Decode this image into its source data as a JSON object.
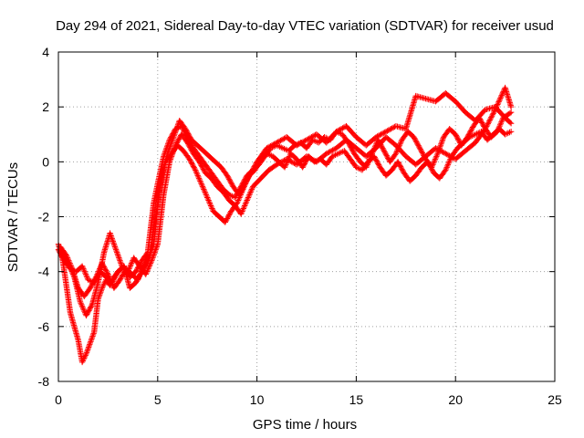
{
  "chart_data": {
    "type": "scatter",
    "title": "Day 294 of 2021, Sidereal Day-to-day VTEC variation (SDTVAR) for receiver usud",
    "xlabel": "GPS time / hours",
    "ylabel": "SDTVAR / TECUs",
    "xlim": [
      0,
      25
    ],
    "ylim": [
      -8,
      4
    ],
    "xticks": [
      0,
      5,
      10,
      15,
      20,
      25
    ],
    "yticks": [
      -8,
      -6,
      -4,
      -2,
      0,
      2,
      4
    ],
    "grid": true,
    "marker": "+",
    "series": [
      {
        "name": "SDTVAR",
        "color": "#ff0000",
        "tracks": [
          {
            "x": [
              0.0,
              0.3,
              0.6,
              0.9,
              1.2,
              1.5,
              1.8,
              2.1,
              2.4,
              2.7,
              3.0,
              3.3,
              3.6,
              3.9,
              4.2,
              4.5,
              4.8,
              5.0,
              5.3,
              5.6,
              5.9,
              6.2,
              6.5,
              6.8,
              7.1,
              7.4,
              7.7,
              8.0,
              8.3,
              8.6,
              8.9,
              9.2,
              9.5,
              9.8,
              10.1,
              10.4,
              10.7,
              11.0,
              11.3,
              11.6,
              11.9,
              12.2,
              12.5,
              12.8,
              13.1,
              13.4,
              13.7,
              14.0,
              14.3,
              14.6,
              14.9,
              15.2,
              15.5,
              15.8,
              16.1,
              16.4,
              16.7,
              17.0,
              17.3,
              17.6,
              17.9,
              18.2,
              18.5,
              18.8,
              19.1,
              19.4,
              19.7,
              20.0,
              20.3,
              20.6,
              20.9,
              21.2,
              21.5,
              21.8,
              22.1,
              22.4,
              22.8
            ],
            "y": [
              -3.2,
              -3.6,
              -3.9,
              -4.0,
              -3.8,
              -4.3,
              -4.4,
              -4.0,
              -4.2,
              -4.4,
              -4.0,
              -3.8,
              -4.2,
              -4.0,
              -3.6,
              -3.3,
              -1.5,
              -0.8,
              0.2,
              0.8,
              1.2,
              1.3,
              0.9,
              0.5,
              0.2,
              -0.1,
              -0.4,
              -0.7,
              -1.0,
              -1.2,
              -1.3,
              -0.9,
              -0.5,
              -0.3,
              -0.1,
              0.2,
              0.5,
              0.6,
              0.5,
              0.4,
              0.6,
              0.7,
              0.5,
              0.8,
              0.7,
              0.9,
              0.8,
              1.1,
              1.0,
              0.7,
              0.3,
              0.0,
              -0.2,
              0.3,
              0.8,
              0.4,
              0.0,
              0.3,
              0.8,
              1.1,
              0.9,
              0.5,
              0.1,
              -0.2,
              0.3,
              0.9,
              1.2,
              1.0,
              0.6,
              0.9,
              1.3,
              1.6,
              1.2,
              0.9,
              1.1,
              1.6,
              1.8
            ]
          },
          {
            "x": [
              0.0,
              0.2,
              0.4,
              0.6,
              0.8,
              1.0,
              1.2,
              1.4,
              1.6,
              1.8,
              2.0,
              2.2,
              2.4,
              2.6,
              2.8,
              3.0,
              3.3,
              3.6,
              3.9,
              4.2,
              4.5,
              4.8,
              5.1,
              5.4,
              5.7,
              6.0,
              6.3,
              6.6,
              6.9,
              7.2,
              7.5,
              7.8,
              8.1,
              8.4,
              8.7,
              9.0,
              9.3,
              9.6,
              9.9,
              10.2,
              10.5,
              10.8,
              11.1,
              11.4,
              11.7,
              12.0,
              12.3,
              12.6,
              12.9,
              13.2,
              13.5,
              13.8,
              14.1,
              14.4,
              14.7,
              15.0,
              15.3,
              15.6,
              15.9,
              16.2,
              16.5,
              16.8,
              17.1,
              17.4,
              17.7,
              18.0,
              18.3,
              18.6,
              18.9,
              19.2,
              19.5,
              19.8,
              20.1,
              20.4,
              20.7,
              21.0,
              21.3,
              21.6,
              21.9,
              22.2,
              22.5,
              22.8
            ],
            "y": [
              -3.0,
              -3.5,
              -4.5,
              -5.5,
              -6.0,
              -6.5,
              -7.3,
              -7.0,
              -6.6,
              -6.2,
              -5.0,
              -4.6,
              -4.3,
              -4.5,
              -4.2,
              -4.0,
              -3.8,
              -4.6,
              -4.4,
              -4.0,
              -3.6,
              -3.0,
              -1.0,
              0.0,
              0.3,
              0.6,
              0.4,
              0.1,
              -0.3,
              -0.8,
              -1.3,
              -1.8,
              -2.0,
              -2.2,
              -1.8,
              -1.5,
              -1.0,
              -0.5,
              -0.3,
              0.1,
              0.3,
              0.2,
              0.0,
              -0.2,
              0.3,
              0.1,
              -0.2,
              0.2,
              0.0,
              0.1,
              -0.1,
              0.2,
              0.3,
              0.4,
              0.1,
              -0.2,
              -0.3,
              0.0,
              0.2,
              -0.2,
              -0.5,
              -0.3,
              0.0,
              -0.4,
              -0.7,
              -0.5,
              -0.2,
              0.0,
              -0.4,
              -0.6,
              -0.3,
              0.2,
              0.5,
              0.7,
              0.9,
              1.0,
              1.1,
              0.8,
              1.0,
              1.2,
              1.0,
              1.1
            ]
          },
          {
            "x": [
              0.1,
              0.4,
              0.7,
              1.0,
              1.3,
              1.6,
              1.9,
              2.2,
              2.5,
              2.8,
              3.1,
              3.4,
              3.7,
              4.0,
              4.3,
              4.6,
              4.9,
              5.2,
              5.5,
              5.8,
              6.1,
              6.4,
              6.7,
              7.0,
              7.3,
              7.6,
              7.9,
              8.2,
              8.5,
              8.8,
              9.1,
              9.4,
              9.7,
              10.0,
              10.5,
              11.0,
              11.5,
              12.0,
              12.5,
              13.0,
              13.5,
              14.0,
              14.5,
              15.0,
              15.5,
              16.0,
              16.5,
              17.0,
              17.5,
              18.0,
              18.5,
              19.0,
              19.5,
              20.0,
              20.5,
              21.0,
              21.5,
              22.0,
              22.5,
              22.8
            ],
            "y": [
              -3.1,
              -3.4,
              -3.9,
              -4.6,
              -4.9,
              -4.6,
              -4.2,
              -3.7,
              -4.1,
              -4.6,
              -4.3,
              -3.9,
              -4.1,
              -4.3,
              -3.8,
              -3.4,
              -2.0,
              -0.5,
              0.3,
              0.9,
              1.5,
              1.2,
              0.8,
              0.6,
              0.4,
              0.2,
              0.0,
              -0.2,
              -0.5,
              -0.9,
              -1.2,
              -0.8,
              -0.4,
              0.0,
              0.5,
              0.7,
              0.9,
              0.6,
              0.8,
              1.0,
              0.7,
              1.1,
              1.3,
              0.9,
              0.6,
              0.9,
              1.1,
              1.3,
              1.2,
              2.4,
              2.3,
              2.2,
              2.5,
              2.2,
              1.8,
              1.5,
              1.9,
              2.0,
              1.6,
              1.4
            ]
          },
          {
            "x": [
              0.2,
              0.5,
              0.8,
              1.1,
              1.4,
              1.7,
              2.0,
              2.3,
              2.6,
              2.9,
              3.2,
              3.5,
              3.8,
              4.1,
              4.4,
              4.7,
              5.0,
              5.3,
              5.6,
              5.9,
              6.2,
              6.5,
              6.8,
              7.1,
              7.4,
              7.7,
              8.0,
              8.3,
              8.6,
              8.9,
              9.2,
              9.5,
              9.8,
              10.2,
              10.6,
              11.0,
              11.5,
              12.0,
              12.5,
              13.0,
              13.5,
              14.0,
              14.5,
              15.0,
              15.5,
              16.0,
              16.5,
              17.0,
              17.5,
              18.0,
              18.5,
              19.0,
              19.5,
              20.0,
              20.5,
              21.0,
              21.5,
              22.0,
              22.5,
              22.8
            ],
            "y": [
              -3.3,
              -3.7,
              -4.2,
              -5.1,
              -5.6,
              -5.2,
              -4.4,
              -3.3,
              -2.6,
              -3.2,
              -3.8,
              -4.0,
              -3.5,
              -3.8,
              -4.1,
              -3.6,
              -3.0,
              -1.2,
              0.0,
              0.6,
              1.0,
              0.7,
              0.3,
              0.0,
              -0.4,
              -0.6,
              -0.9,
              -1.1,
              -1.4,
              -1.6,
              -1.9,
              -1.4,
              -0.9,
              -0.6,
              -0.3,
              -0.1,
              0.1,
              -0.1,
              0.2,
              0.0,
              0.3,
              0.5,
              0.8,
              0.5,
              0.2,
              0.5,
              0.9,
              0.6,
              0.2,
              -0.1,
              0.2,
              0.5,
              0.3,
              0.1,
              0.4,
              0.7,
              1.2,
              1.9,
              2.7,
              2.0
            ]
          }
        ]
      }
    ]
  }
}
